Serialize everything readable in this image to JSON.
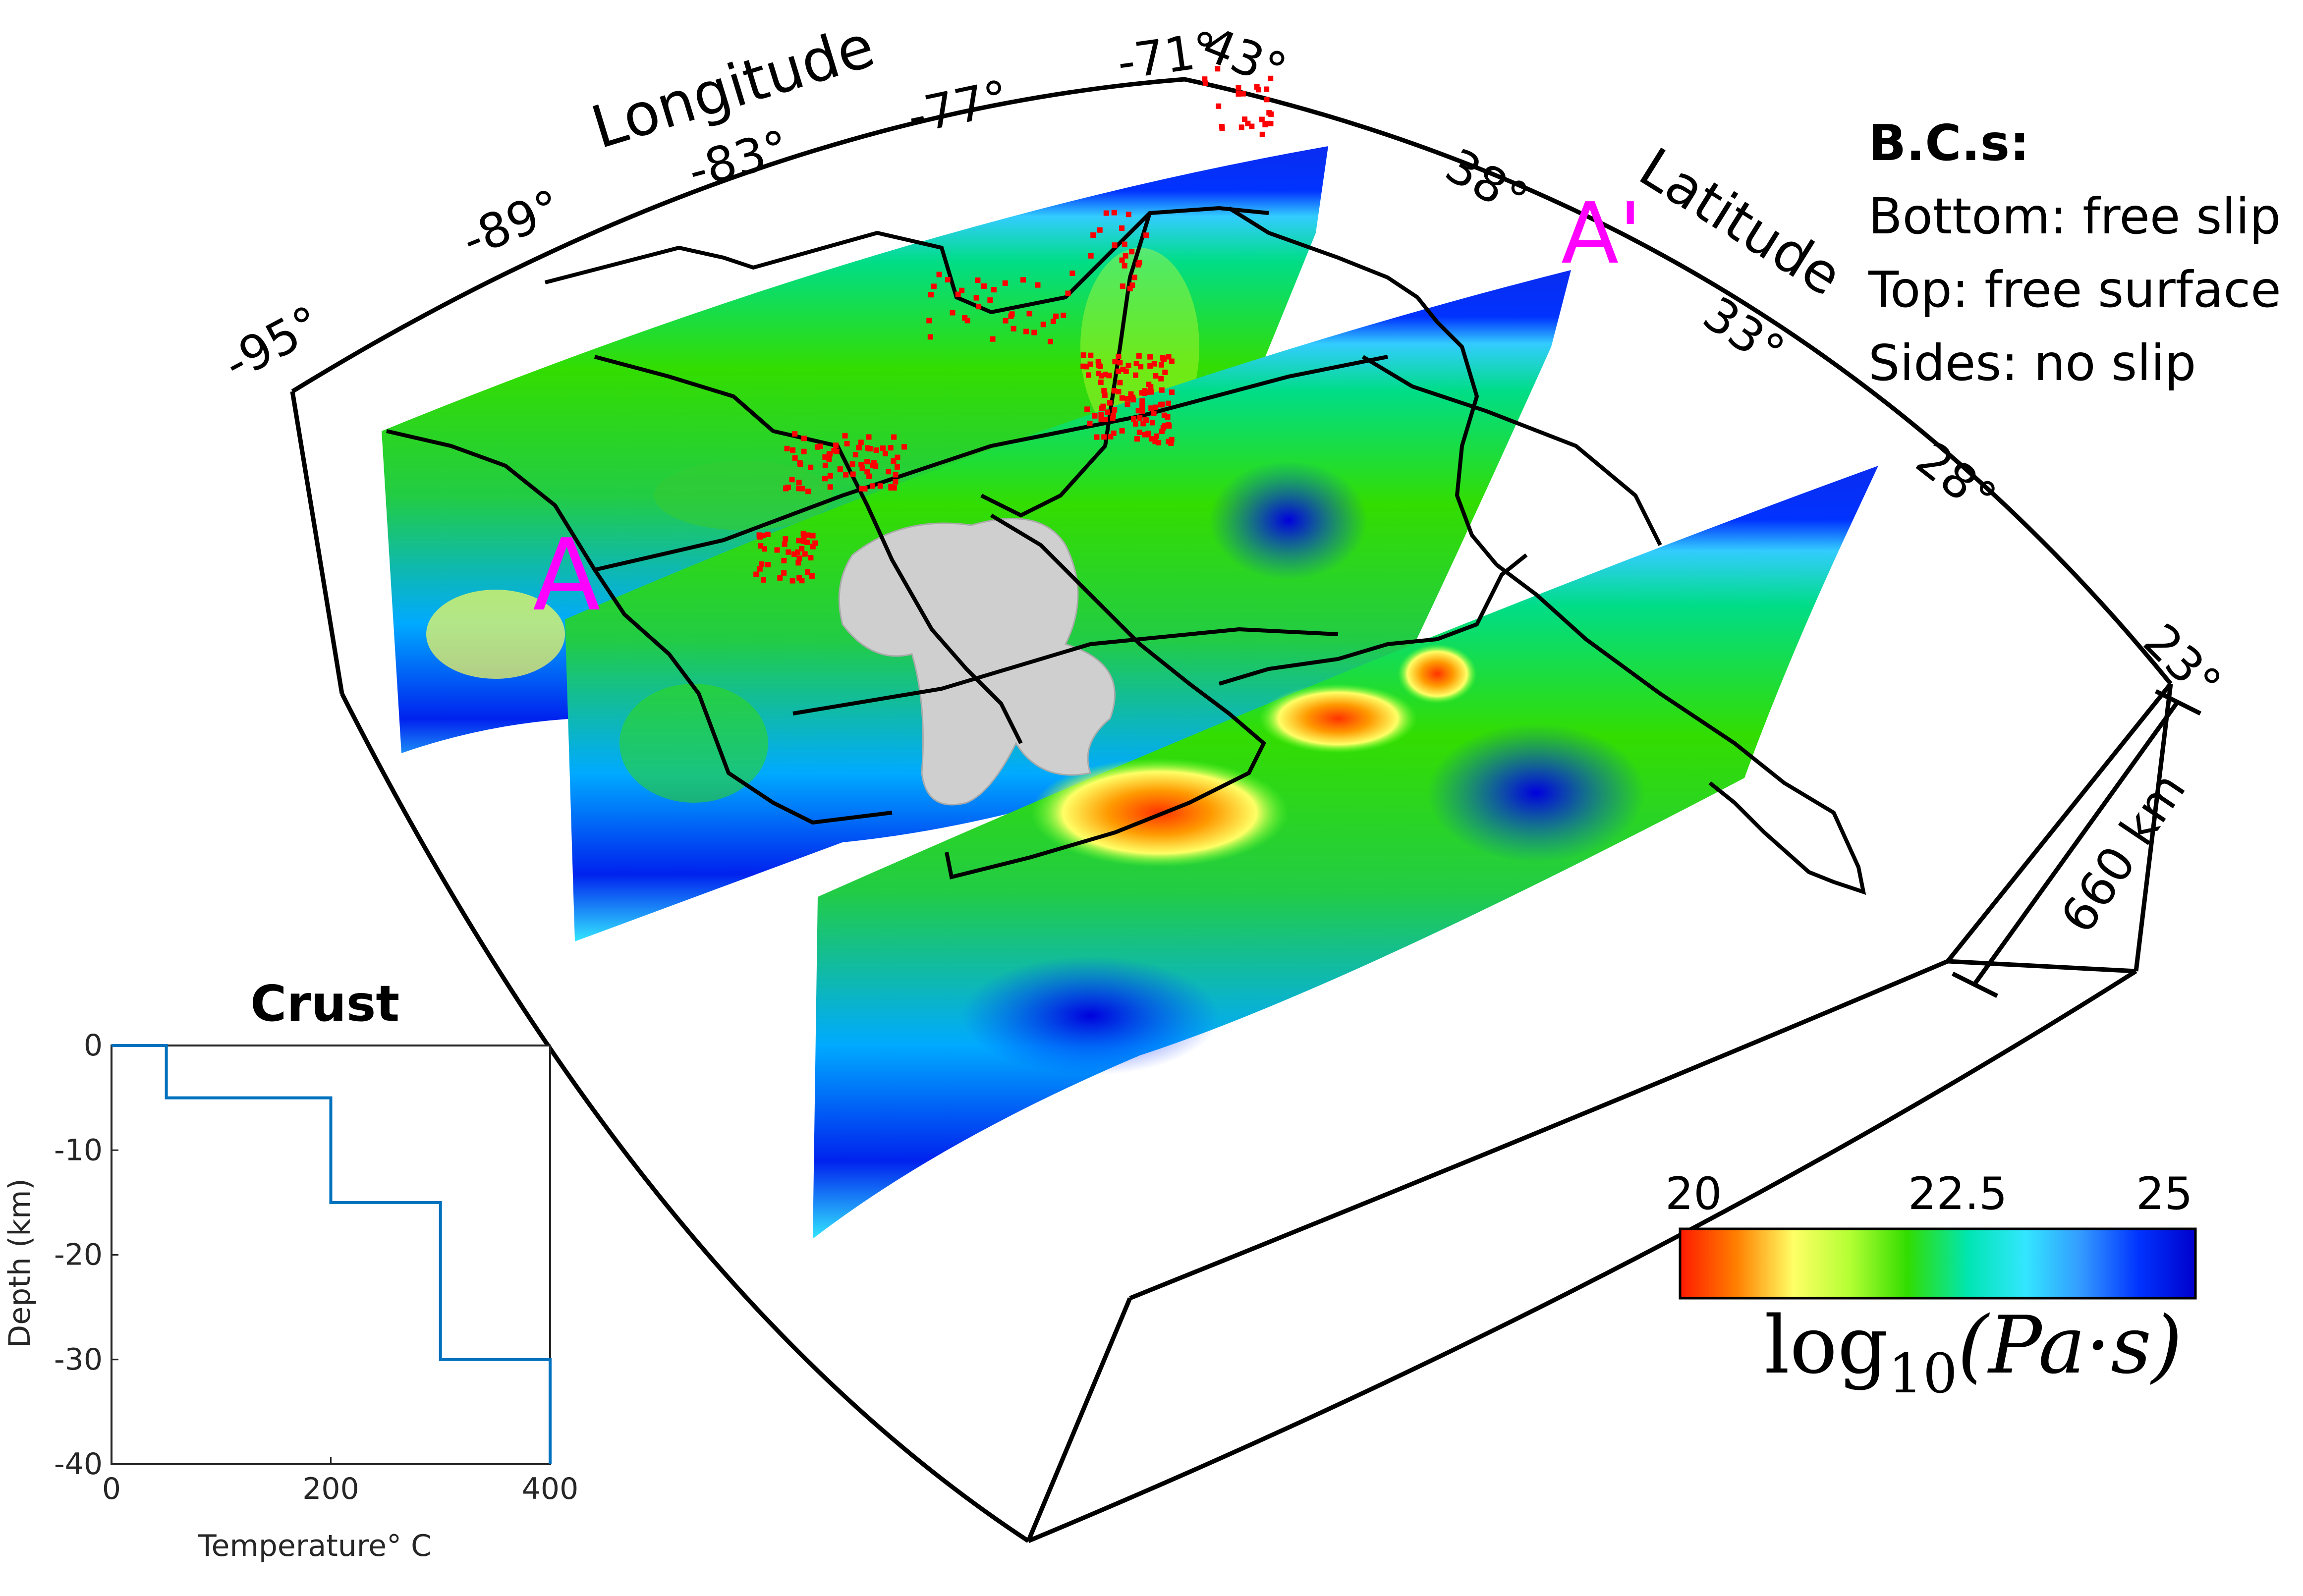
{
  "axes": {
    "longitude_title": "Longitude",
    "latitude_title": "Latitude",
    "longitude_ticks": [
      "-95°",
      "-89°",
      "-83°",
      "-77°",
      "-71°"
    ],
    "latitude_ticks": [
      "43°",
      "38°",
      "33°",
      "28°",
      "23°"
    ],
    "depth_label": "660 km"
  },
  "profile_labels": {
    "start": "A",
    "end": "A'"
  },
  "boundary_conditions": {
    "title": "B.C.s:",
    "lines": [
      "Bottom: free slip",
      "Top: free surface",
      "Sides: no slip"
    ]
  },
  "colorbar": {
    "ticks": [
      "20",
      "22.5",
      "25"
    ],
    "label": "log10(Pa·s)",
    "label_main": "log",
    "label_sub": "10",
    "label_rest": "(Pa·s)",
    "colors": [
      "#ff1a00",
      "#ff8000",
      "#ffff66",
      "#b3ff33",
      "#33dd00",
      "#00e6b3",
      "#33e6ff",
      "#3399ff",
      "#0033ff",
      "#0000cc"
    ]
  },
  "colors": {
    "highlight_label": "#ff00ff",
    "earthquakes": "#ff0000",
    "anomaly": "#cfcfcf",
    "crust_line": "#0072bd"
  },
  "crust_chart": {
    "title": "Crust",
    "xlabel": "Temperature° C",
    "ylabel": "Depth (km)",
    "x_ticks": [
      "0",
      "200",
      "400"
    ],
    "y_ticks": [
      "0",
      "-10",
      "-20",
      "-30",
      "-40"
    ],
    "xlim": [
      0,
      400
    ],
    "ylim": [
      -40,
      0
    ],
    "step_profile": [
      {
        "x": 0,
        "y": 0
      },
      {
        "x": 50,
        "y": 0
      },
      {
        "x": 50,
        "y": -5
      },
      {
        "x": 200,
        "y": -5
      },
      {
        "x": 200,
        "y": -15
      },
      {
        "x": 300,
        "y": -15
      },
      {
        "x": 300,
        "y": -30
      },
      {
        "x": 400,
        "y": -30
      },
      {
        "x": 400,
        "y": -40
      }
    ]
  }
}
